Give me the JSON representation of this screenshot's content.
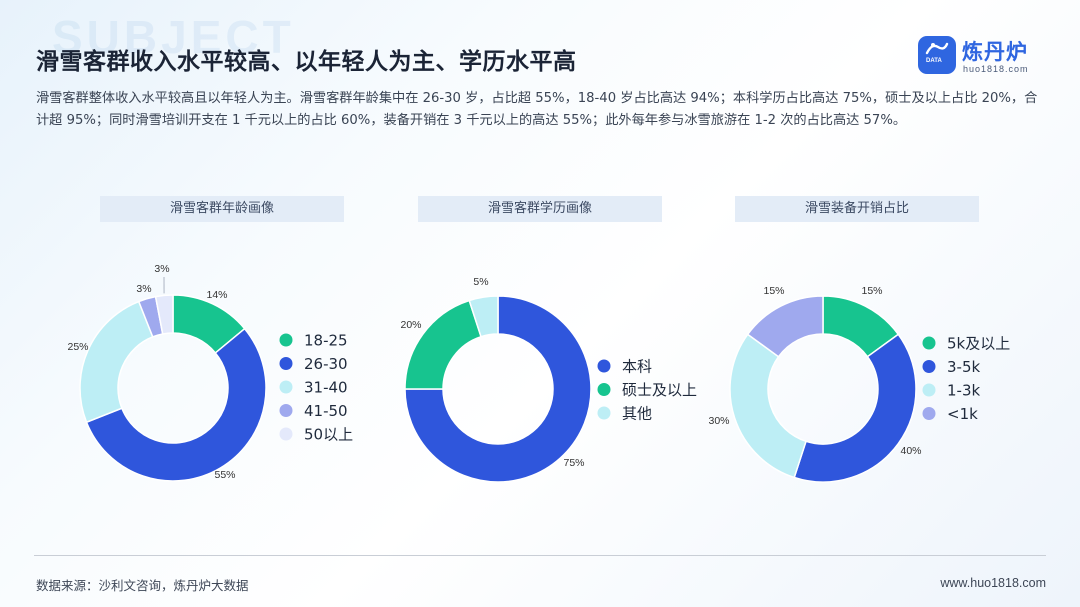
{
  "watermark_word": "SUBJECT",
  "title": "滑雪客群收入水平较高、以年轻人为主、学历水平高",
  "description": "滑雪客群整体收入水平较高且以年轻人为主。滑雪客群年龄集中在 26-30 岁，占比超 55%，18-40 岁占比高达 94%；本科学历占比高达 75%，硕士及以上占比 20%，合计超 95%；同时滑雪培训开支在 1 千元以上的占比 60%，装备开销在 3 千元以上的高达 55%；此外每年参与冰雪旅游在 1-2 次的占比高达 57%。",
  "logo": {
    "name": "炼丹炉",
    "url": "huo1818.com",
    "tag": "DATA"
  },
  "colors": {
    "green": "#17c48f",
    "blue": "#2f56dc",
    "light_cyan": "#bdeef5",
    "lavender": "#9fa9ee",
    "pale": "#e4e9fb"
  },
  "chart_data": [
    {
      "type": "donut",
      "title": "滑雪客群年龄画像",
      "categories": [
        "18-25",
        "26-30",
        "31-40",
        "41-50",
        "50以上"
      ],
      "values": [
        14,
        55,
        25,
        3,
        3
      ],
      "labels": [
        "14%",
        "55%",
        "25%",
        "3%",
        "3%"
      ],
      "colors": [
        "#17c48f",
        "#2f56dc",
        "#bdeef5",
        "#9fa9ee",
        "#e4e9fb"
      ],
      "legend_position": "right"
    },
    {
      "type": "donut",
      "title": "滑雪客群学历画像",
      "categories": [
        "本科",
        "硕士及以上",
        "其他"
      ],
      "values": [
        75,
        20,
        5
      ],
      "labels": [
        "75%",
        "20%",
        "5%"
      ],
      "colors": [
        "#2f56dc",
        "#17c48f",
        "#bdeef5"
      ],
      "legend_position": "right"
    },
    {
      "type": "donut",
      "title": "滑雪装备开销占比",
      "categories": [
        "5k及以上",
        "3-5k",
        "1-3k",
        "<1k"
      ],
      "values": [
        15,
        40,
        30,
        15
      ],
      "labels": [
        "15%",
        "40%",
        "30%",
        "15%"
      ],
      "colors": [
        "#17c48f",
        "#2f56dc",
        "#bdeef5",
        "#9fa9ee"
      ],
      "legend_position": "right"
    }
  ],
  "footer": {
    "source": "数据来源：沙利文咨询，炼丹炉大数据",
    "site": "www.huo1818.com"
  }
}
